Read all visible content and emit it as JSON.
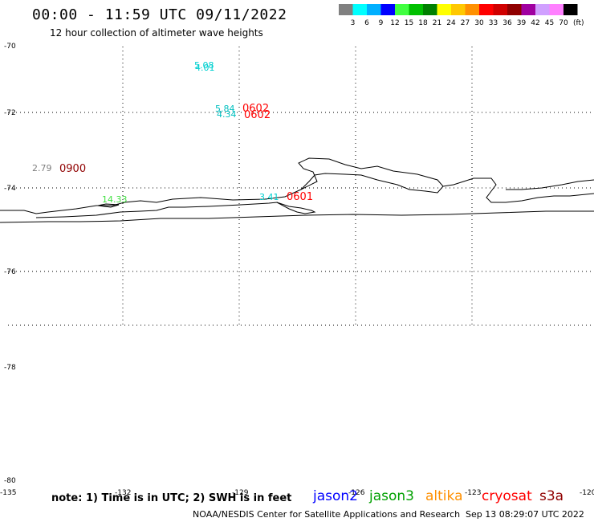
{
  "header": {
    "title": "00:00 - 11:59 UTC 09/11/2022",
    "subtitle": "12 hour collection of altimeter wave heights"
  },
  "legend": {
    "unit_label": "(ft)",
    "bins": [
      {
        "color": "#808080",
        "label": "3"
      },
      {
        "color": "#00ffff",
        "label": "6"
      },
      {
        "color": "#00b0ff",
        "label": "9"
      },
      {
        "color": "#0000ff",
        "label": "12"
      },
      {
        "color": "#40ff40",
        "label": "15"
      },
      {
        "color": "#00c000",
        "label": "18"
      },
      {
        "color": "#008000",
        "label": "21"
      },
      {
        "color": "#ffff00",
        "label": "24"
      },
      {
        "color": "#ffc800",
        "label": "27"
      },
      {
        "color": "#ff9000",
        "label": "30"
      },
      {
        "color": "#ff0000",
        "label": "33"
      },
      {
        "color": "#d00000",
        "label": "36"
      },
      {
        "color": "#900000",
        "label": "39"
      },
      {
        "color": "#a000a0",
        "label": "42"
      },
      {
        "color": "#d0a0ff",
        "label": "45"
      },
      {
        "color": "#ff80ff",
        "label": "70"
      },
      {
        "color": "#000000",
        "label": ""
      }
    ]
  },
  "map": {
    "lat_labels": [
      "-70",
      "-72",
      "-74",
      "-76",
      "-78",
      "-80"
    ],
    "lon_labels": [
      "-135",
      "-132",
      "-129",
      "-126",
      "-123",
      "-120"
    ],
    "observations": [
      {
        "value": "5.08",
        "color": "#00d0d0"
      },
      {
        "value": "4.01",
        "color": "#00d0d0"
      },
      {
        "value": "5.84",
        "color": "#00c0c0"
      },
      {
        "value": "4.34",
        "color": "#00c0c0"
      },
      {
        "value": "2.79",
        "color": "#808080"
      },
      {
        "value": "14.33",
        "color": "#40e040"
      },
      {
        "value": "3.41",
        "color": "#00d0d0"
      }
    ],
    "times": [
      {
        "value": "0602",
        "color": "#ff0000"
      },
      {
        "value": "0602",
        "color": "#ff0000"
      },
      {
        "value": "0900",
        "color": "#900000"
      },
      {
        "value": "0601",
        "color": "#ff0000"
      }
    ]
  },
  "footer": {
    "note": "note: 1) Time is in UTC; 2) SWH is in feet",
    "missions": [
      {
        "name": "jason2",
        "color": "#0000ff"
      },
      {
        "name": "jason3",
        "color": "#00a000"
      },
      {
        "name": "altika",
        "color": "#ff9000"
      },
      {
        "name": "cryosat",
        "color": "#ff0000"
      },
      {
        "name": "s3a",
        "color": "#900000"
      }
    ],
    "credit": "NOAA/NESDIS Center for Satellite Applications and Research",
    "timestamp": "Sep 13 08:29:07 UTC 2022"
  }
}
